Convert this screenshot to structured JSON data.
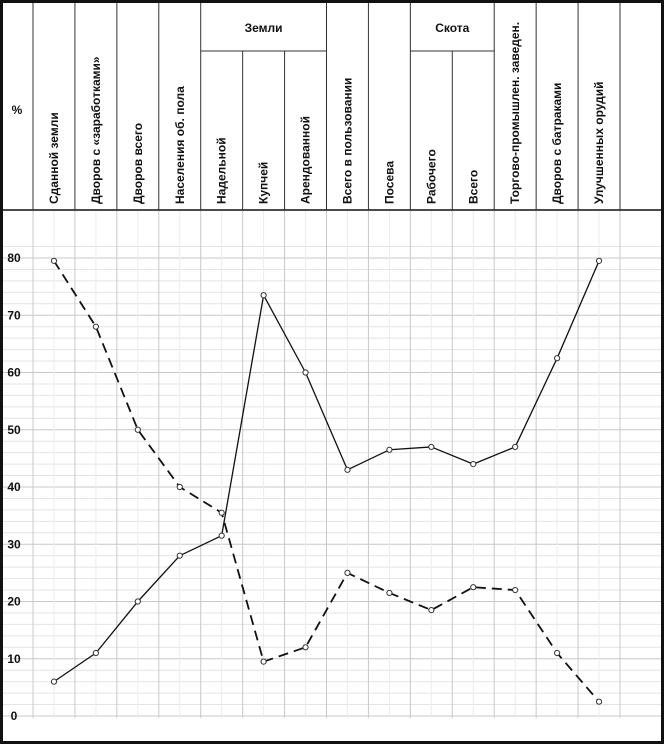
{
  "chart_data": {
    "type": "line",
    "title": "",
    "ylabel": "%",
    "xlabel": "",
    "ylim": [
      0,
      80
    ],
    "yticks": [
      0,
      10,
      20,
      30,
      40,
      50,
      60,
      70,
      80
    ],
    "grid": true,
    "legend": "none",
    "groups": [
      {
        "label": "Земли",
        "first": 4,
        "last": 6
      },
      {
        "label": "Скота",
        "first": 9,
        "last": 10
      }
    ],
    "categories": [
      "Сданной земли",
      "Дворов с «заработками»",
      "Дворов всего",
      "Населения об. пола",
      "Надельной",
      "Купчей",
      "Арендованной",
      "Всего в пользовании",
      "Посева",
      "Рабочего",
      "Всего",
      "Торгово-промышлен. заведен.",
      "Дворов с батраками",
      "Улучшенных орудий"
    ],
    "series": [
      {
        "style": "solid",
        "values": [
          6,
          11,
          20,
          28,
          31.5,
          73.5,
          60,
          43,
          46.5,
          47,
          44,
          47,
          62.5,
          79.5
        ]
      },
      {
        "style": "dashed",
        "values": [
          79.5,
          68,
          50,
          40,
          35.5,
          9.5,
          12,
          25,
          21.5,
          18.5,
          22.5,
          22,
          11,
          2.5
        ]
      }
    ]
  }
}
